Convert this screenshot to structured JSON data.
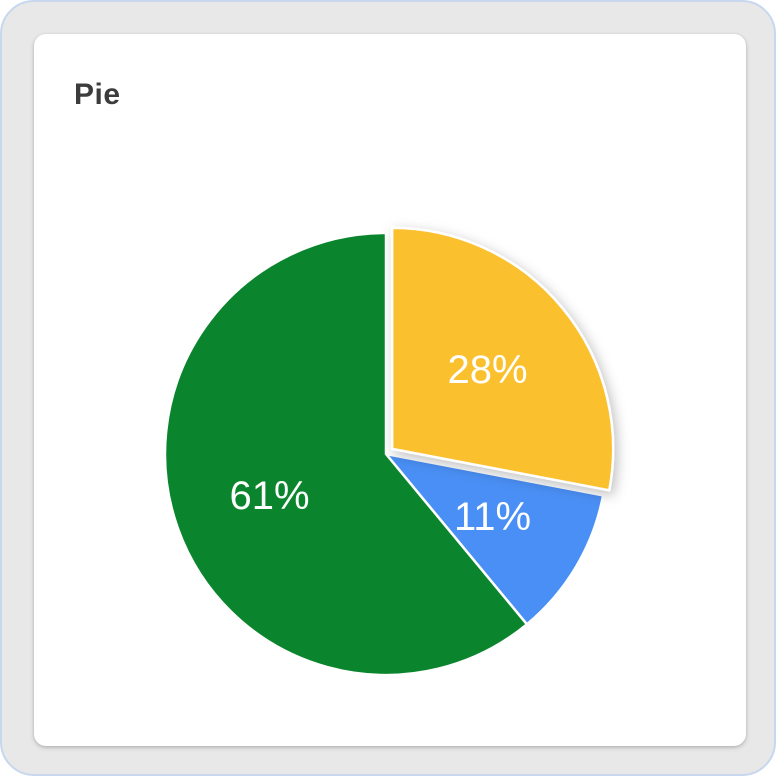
{
  "card": {
    "title": "Pie"
  },
  "chart_data": {
    "type": "pie",
    "title": "Pie",
    "slices": [
      {
        "value": 28,
        "label": "28%",
        "color": "#FBC02D",
        "exploded": true
      },
      {
        "value": 11,
        "label": "11%",
        "color": "#4A8FF5",
        "exploded": false
      },
      {
        "value": 61,
        "label": "61%",
        "color": "#0B852D",
        "exploded": false
      }
    ],
    "start_angle_deg": 0,
    "direction": "clockwise",
    "legend": "none"
  }
}
